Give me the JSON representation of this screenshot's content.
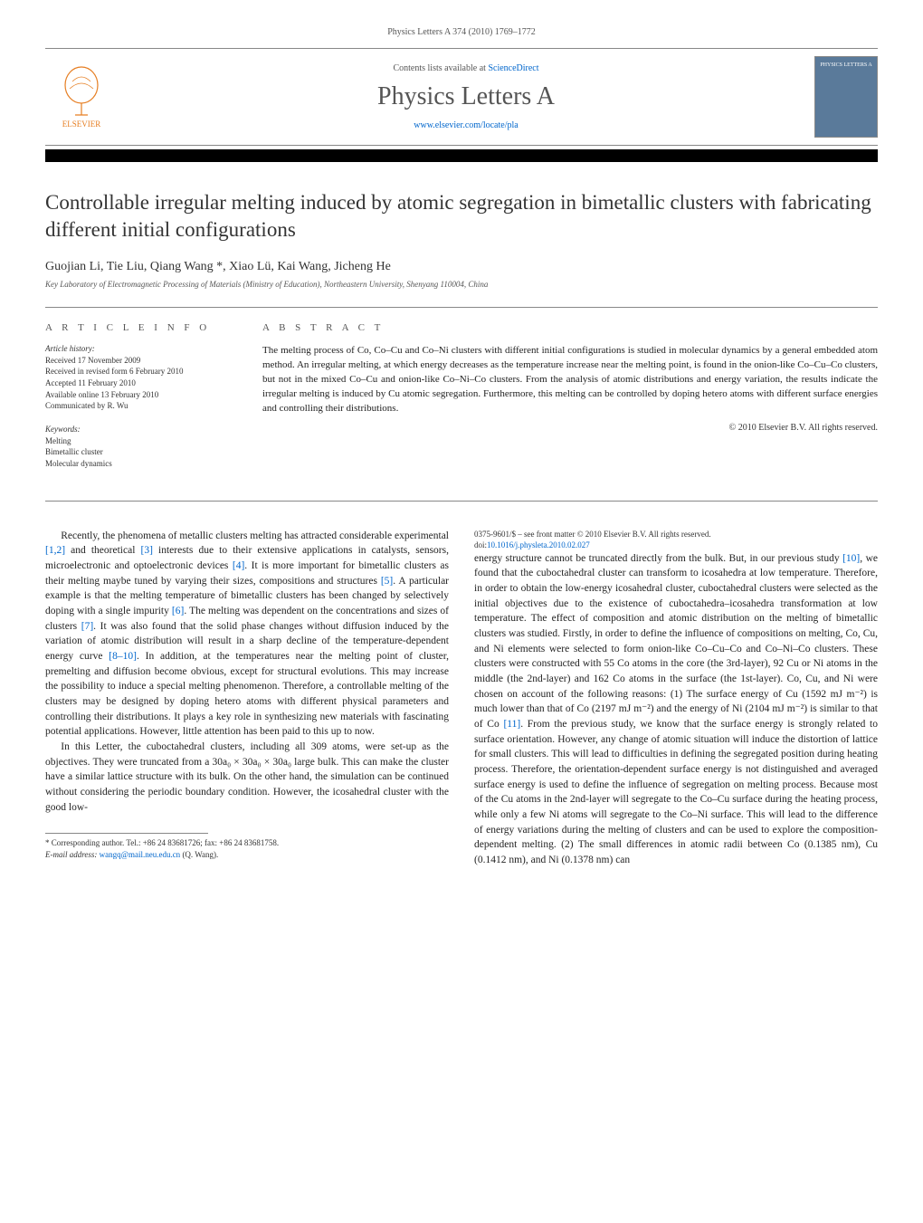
{
  "journal": {
    "header_small": "Physics Letters A 374 (2010) 1769–1772",
    "contents_prefix": "Contents lists available at ",
    "contents_link": "ScienceDirect",
    "title": "Physics Letters A",
    "url": "www.elsevier.com/locate/pla",
    "publisher": "ELSEVIER",
    "cover_label": "PHYSICS LETTERS A"
  },
  "article": {
    "title": "Controllable irregular melting induced by atomic segregation in bimetallic clusters with fabricating different initial configurations",
    "authors": "Guojian Li, Tie Liu, Qiang Wang *, Xiao Lü, Kai Wang, Jicheng He",
    "affiliation": "Key Laboratory of Electromagnetic Processing of Materials (Ministry of Education), Northeastern University, Shenyang 110004, China"
  },
  "info": {
    "heading": "A R T I C L E   I N F O",
    "history_head": "Article history:",
    "history": [
      "Received 17 November 2009",
      "Received in revised form 6 February 2010",
      "Accepted 11 February 2010",
      "Available online 13 February 2010",
      "Communicated by R. Wu"
    ],
    "keywords_head": "Keywords:",
    "keywords": [
      "Melting",
      "Bimetallic cluster",
      "Molecular dynamics"
    ]
  },
  "abstract": {
    "heading": "A B S T R A C T",
    "text": "The melting process of Co, Co–Cu and Co–Ni clusters with different initial configurations is studied in molecular dynamics by a general embedded atom method. An irregular melting, at which energy decreases as the temperature increase near the melting point, is found in the onion-like Co–Cu–Co clusters, but not in the mixed Co–Cu and onion-like Co–Ni–Co clusters. From the analysis of atomic distributions and energy variation, the results indicate the irregular melting is induced by Cu atomic segregation. Furthermore, this melting can be controlled by doping hetero atoms with different surface energies and controlling their distributions.",
    "copyright": "© 2010 Elsevier B.V. All rights reserved."
  },
  "body": {
    "p1": "Recently, the phenomena of metallic clusters melting has attracted considerable experimental [1,2] and theoretical [3] interests due to their extensive applications in catalysts, sensors, microelectronic and optoelectronic devices [4]. It is more important for bimetallic clusters as their melting maybe tuned by varying their sizes, compositions and structures [5]. A particular example is that the melting temperature of bimetallic clusters has been changed by selectively doping with a single impurity [6]. The melting was dependent on the concentrations and sizes of clusters [7]. It was also found that the solid phase changes without diffusion induced by the variation of atomic distribution will result in a sharp decline of the temperature-dependent energy curve [8–10]. In addition, at the temperatures near the melting point of cluster, premelting and diffusion become obvious, except for structural evolutions. This may increase the possibility to induce a special melting phenomenon. Therefore, a controllable melting of the clusters may be designed by doping hetero atoms with different physical parameters and controlling their distributions. It plays a key role in synthesizing new materials with fascinating potential applications. However, little attention has been paid to this up to now.",
    "p2": "In this Letter, the cuboctahedral clusters, including all 309 atoms, were set-up as the objectives. They were truncated from a 30a₀ × 30a₀ × 30a₀ large bulk. This can make the cluster have a similar lattice structure with its bulk. On the other hand, the simulation can be continued without considering the periodic boundary condition. However, the icosahedral cluster with the good low-",
    "p3": "energy structure cannot be truncated directly from the bulk. But, in our previous study [10], we found that the cuboctahedral cluster can transform to icosahedra at low temperature. Therefore, in order to obtain the low-energy icosahedral cluster, cuboctahedral clusters were selected as the initial objectives due to the existence of cuboctahedra–icosahedra transformation at low temperature. The effect of composition and atomic distribution on the melting of bimetallic clusters was studied. Firstly, in order to define the influence of compositions on melting, Co, Cu, and Ni elements were selected to form onion-like Co–Cu–Co and Co–Ni–Co clusters. These clusters were constructed with 55 Co atoms in the core (the 3rd-layer), 92 Cu or Ni atoms in the middle (the 2nd-layer) and 162 Co atoms in the surface (the 1st-layer). Co, Cu, and Ni were chosen on account of the following reasons: (1) The surface energy of Cu (1592 mJ m⁻²) is much lower than that of Co (2197 mJ m⁻²) and the energy of Ni (2104 mJ m⁻²) is similar to that of Co [11]. From the previous study, we know that the surface energy is strongly related to surface orientation. However, any change of atomic situation will induce the distortion of lattice for small clusters. This will lead to difficulties in defining the segregated position during heating process. Therefore, the orientation-dependent surface energy is not distinguished and averaged surface energy is used to define the influence of segregation on melting process. Because most of the Cu atoms in the 2nd-layer will segregate to the Co–Cu surface during the heating process, while only a few Ni atoms will segregate to the Co–Ni surface. This will lead to the difference of energy variations during the melting of clusters and can be used to explore the composition-dependent melting. (2) The small differences in atomic radii between Co (0.1385 nm), Cu (0.1412 nm), and Ni (0.1378 nm) can"
  },
  "footnote": {
    "corr": "* Corresponding author. Tel.: +86 24 83681726; fax: +86 24 83681758.",
    "email_label": "E-mail address: ",
    "email": "wangq@mail.neu.edu.cn",
    "email_suffix": " (Q. Wang)."
  },
  "bottom": {
    "line1": "0375-9601/$ – see front matter © 2010 Elsevier B.V. All rights reserved.",
    "doi_label": "doi:",
    "doi": "10.1016/j.physleta.2010.02.027"
  },
  "colors": {
    "link": "#0066cc",
    "text": "#222222",
    "muted": "#555555",
    "orange": "#e67e22",
    "cover_bg": "#5a7a9a"
  }
}
